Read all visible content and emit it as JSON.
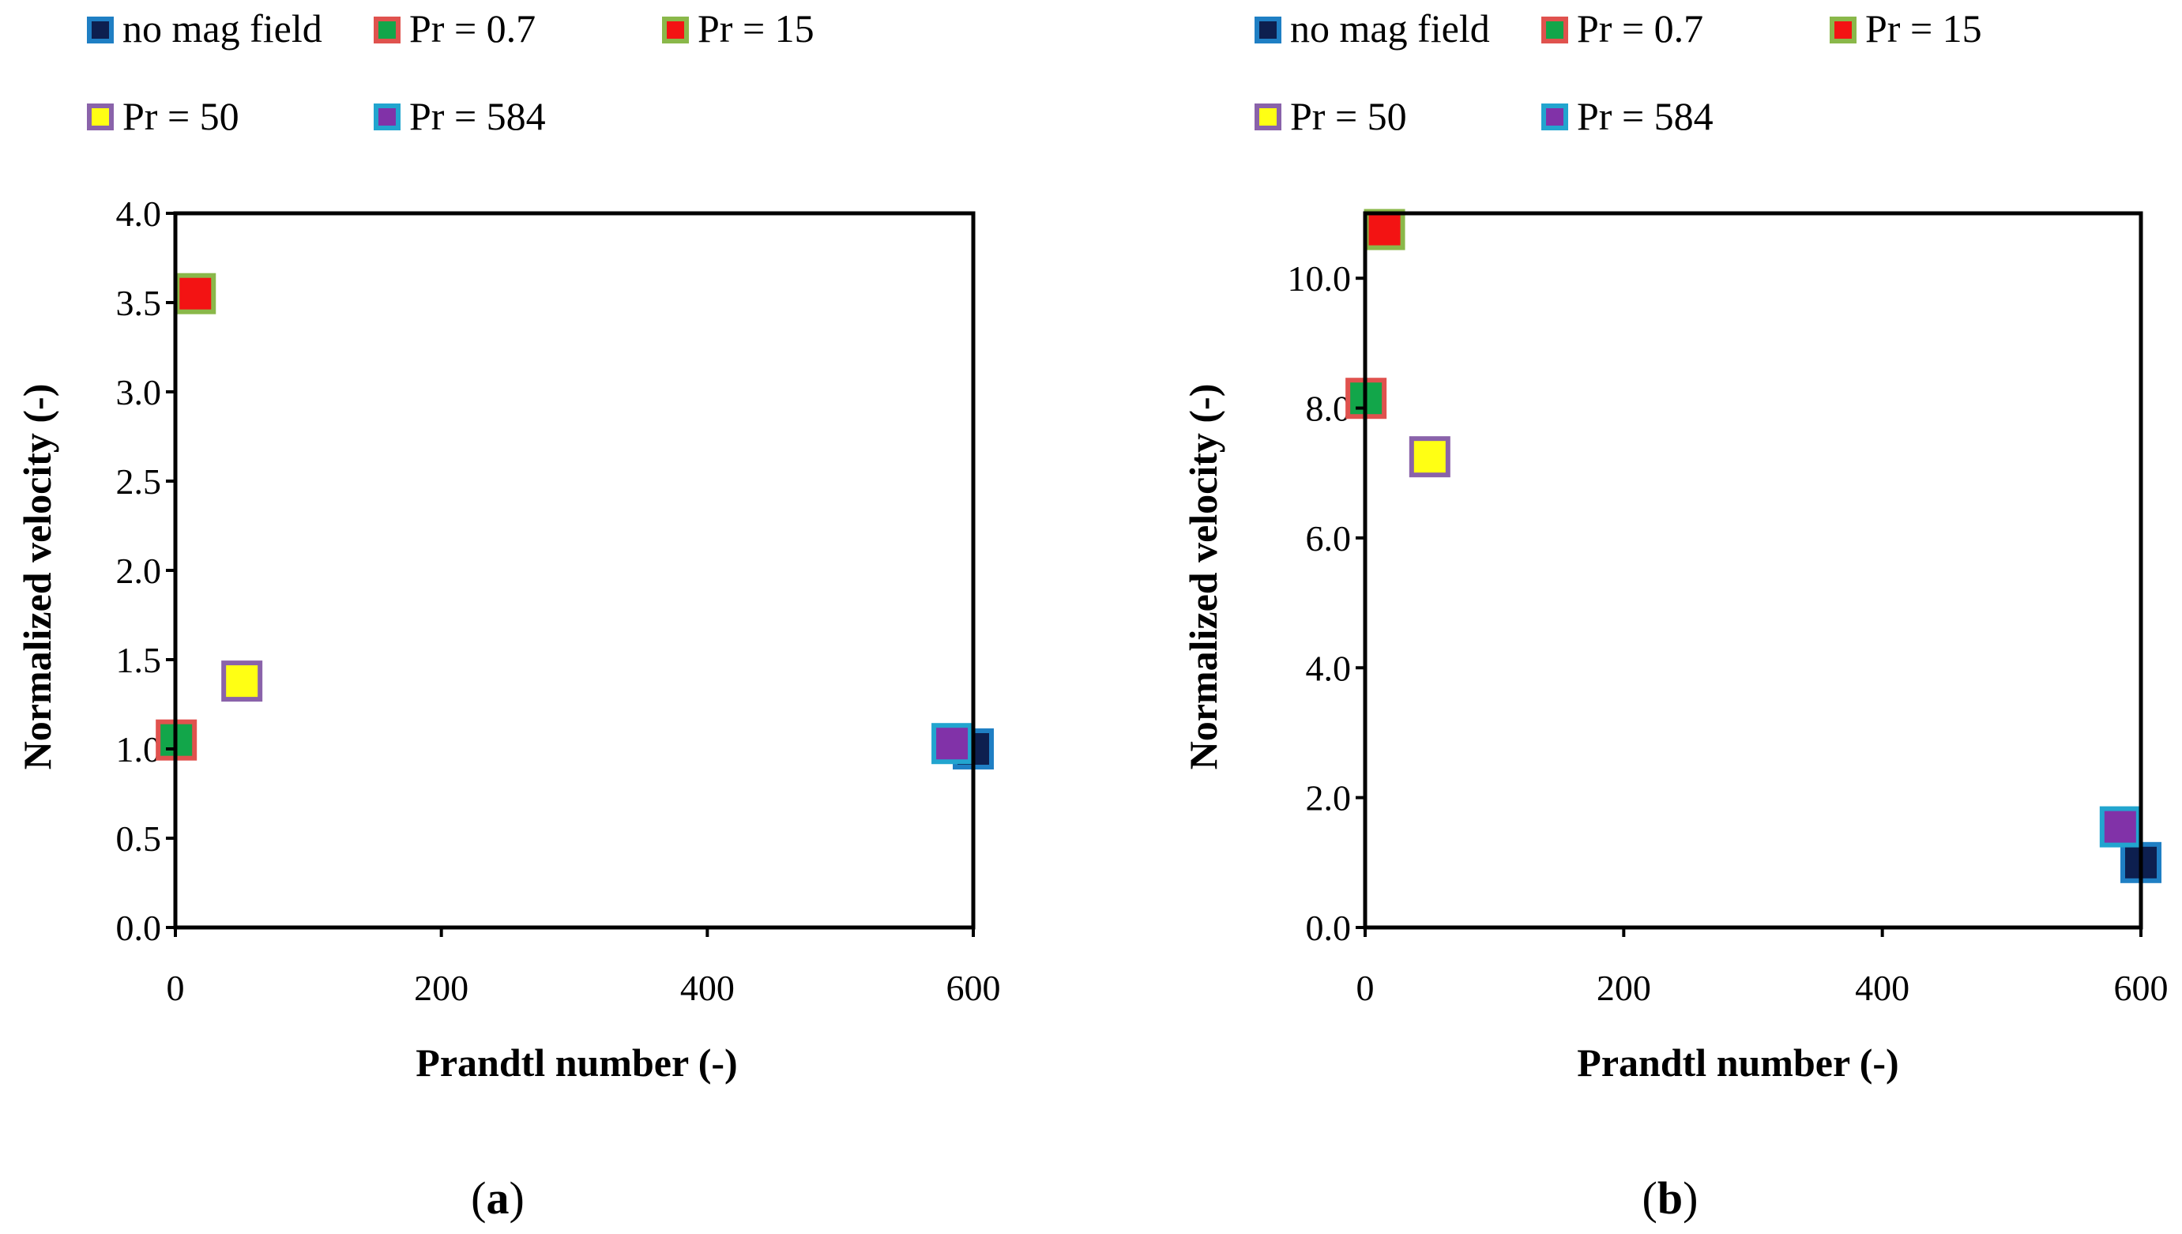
{
  "chart_data": [
    {
      "id": "a",
      "type": "scatter",
      "panel_label": "(a)",
      "panel_letter": "a",
      "xlabel": "Prandtl number (-)",
      "ylabel": "Normalized velocity (-)",
      "xlim": [
        0,
        600
      ],
      "ylim": [
        0,
        4.0
      ],
      "xticks": [
        0,
        200,
        400,
        600
      ],
      "yticks": [
        0.0,
        0.5,
        1.0,
        1.5,
        2.0,
        2.5,
        3.0,
        3.5,
        4.0
      ],
      "x_tick_labels": [
        "0",
        "200",
        "400",
        "600"
      ],
      "y_tick_labels": [
        "0.0",
        "0.5",
        "1.0",
        "1.5",
        "2.0",
        "2.5",
        "3.0",
        "3.5",
        "4.0"
      ],
      "legend": {
        "placement": "top",
        "entries": [
          "no mag field",
          "Pr = 0.7",
          "Pr = 15",
          "Pr = 50",
          "Pr = 584"
        ]
      },
      "series": [
        {
          "name": "no mag field",
          "x": [
            600
          ],
          "y": [
            1.0
          ],
          "fill": "#0d1f4f",
          "stroke": "#1f7fc4"
        },
        {
          "name": "Pr = 0.7",
          "x": [
            0.7
          ],
          "y": [
            1.05
          ],
          "fill": "#12a64a",
          "stroke": "#e0524e"
        },
        {
          "name": "Pr = 15",
          "x": [
            15
          ],
          "y": [
            3.55
          ],
          "fill": "#f31313",
          "stroke": "#8ab84a"
        },
        {
          "name": "Pr = 50",
          "x": [
            50
          ],
          "y": [
            1.38
          ],
          "fill": "#ffff14",
          "stroke": "#8a63aa"
        },
        {
          "name": "Pr = 584",
          "x": [
            584
          ],
          "y": [
            1.03
          ],
          "fill": "#8132a8",
          "stroke": "#22a5cf"
        }
      ]
    },
    {
      "id": "b",
      "type": "scatter",
      "panel_label": "(b)",
      "panel_letter": "b",
      "xlabel": "Prandtl number (-)",
      "ylabel": "Normalized velocity (-)",
      "xlim": [
        0,
        600
      ],
      "ylim": [
        0,
        11.0
      ],
      "xticks": [
        0,
        200,
        400,
        600
      ],
      "yticks": [
        0.0,
        2.0,
        4.0,
        6.0,
        8.0,
        10.0
      ],
      "x_tick_labels": [
        "0",
        "200",
        "400",
        "600"
      ],
      "y_tick_labels": [
        "0.0",
        "2.0",
        "4.0",
        "6.0",
        "8.0",
        "10.0"
      ],
      "legend": {
        "placement": "top",
        "entries": [
          "no mag field",
          "Pr = 0.7",
          "Pr = 15",
          "Pr = 50",
          "Pr = 584"
        ]
      },
      "series": [
        {
          "name": "no mag field",
          "x": [
            600
          ],
          "y": [
            1.0
          ],
          "fill": "#0d1f4f",
          "stroke": "#1f7fc4"
        },
        {
          "name": "Pr = 0.7",
          "x": [
            0.7
          ],
          "y": [
            8.15
          ],
          "fill": "#12a64a",
          "stroke": "#e0524e"
        },
        {
          "name": "Pr = 15",
          "x": [
            15
          ],
          "y": [
            10.75
          ],
          "fill": "#f31313",
          "stroke": "#8ab84a"
        },
        {
          "name": "Pr = 50",
          "x": [
            50
          ],
          "y": [
            7.25
          ],
          "fill": "#ffff14",
          "stroke": "#8a63aa"
        },
        {
          "name": "Pr = 584",
          "x": [
            584
          ],
          "y": [
            1.55
          ],
          "fill": "#8132a8",
          "stroke": "#22a5cf"
        }
      ]
    }
  ]
}
